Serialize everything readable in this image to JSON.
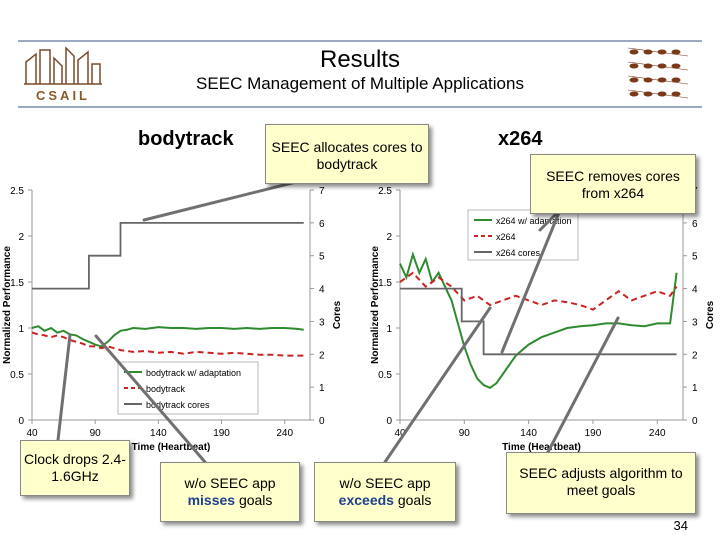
{
  "slide": {
    "title": "Results",
    "subtitle": "SEEC Management of Multiple Applications",
    "page_number": "34",
    "logo_left_text": "CSAIL"
  },
  "labels": {
    "bodytrack": "bodytrack",
    "x264": "x264"
  },
  "callouts": {
    "allocates": "SEEC allocates cores to bodytrack",
    "removes": "SEEC removes cores from x264",
    "clock": "Clock drops 2.4-1.6GHz",
    "misses_pre": "w/o SEEC app",
    "misses_bold": "misses",
    "misses_post": "goals",
    "exceeds_pre": "w/o SEEC app",
    "exceeds_bold": "exceeds",
    "exceeds_post": "goals",
    "adjusts": "SEEC adjusts algorithm to meet goals"
  },
  "colors": {
    "adaptation": "#2e8b2e",
    "baseline": "#cc2222",
    "cores": "#666666",
    "callout_bg": "#ffffcc",
    "accent_blue": "#1f3f8f"
  },
  "chart_data": [
    {
      "type": "line",
      "name": "bodytrack",
      "xlabel": "Time (Heartbeat)",
      "ylabel": "Normalized Performance",
      "y2label": "Cores",
      "xlim": [
        40,
        260
      ],
      "ylim": [
        0,
        2.5
      ],
      "y2lim": [
        0,
        7
      ],
      "xticks": [
        "40",
        "90",
        "140",
        "190",
        "240"
      ],
      "yticks": [
        "0",
        "0.5",
        "1",
        "1.5",
        "2",
        "2.5"
      ],
      "y2ticks": [
        "0",
        "1",
        "2",
        "3",
        "4",
        "5",
        "6",
        "7"
      ],
      "legend": [
        "bodytrack w/ adaptation",
        "bodytrack",
        "bodytrack cores"
      ],
      "legend_position": "bottom-right",
      "series": [
        {
          "name": "bodytrack w/ adaptation",
          "axis": "left",
          "points": [
            [
              40,
              1.0
            ],
            [
              45,
              1.02
            ],
            [
              50,
              0.97
            ],
            [
              55,
              1.0
            ],
            [
              60,
              0.95
            ],
            [
              65,
              0.97
            ],
            [
              70,
              0.93
            ],
            [
              75,
              0.92
            ],
            [
              80,
              0.88
            ],
            [
              85,
              0.85
            ],
            [
              90,
              0.82
            ],
            [
              95,
              0.8
            ],
            [
              100,
              0.85
            ],
            [
              105,
              0.92
            ],
            [
              110,
              0.97
            ],
            [
              115,
              0.98
            ],
            [
              120,
              1.0
            ],
            [
              130,
              0.99
            ],
            [
              140,
              1.01
            ],
            [
              150,
              1.0
            ],
            [
              160,
              1.0
            ],
            [
              170,
              0.99
            ],
            [
              180,
              1.0
            ],
            [
              190,
              1.0
            ],
            [
              200,
              0.99
            ],
            [
              210,
              1.0
            ],
            [
              220,
              0.99
            ],
            [
              230,
              1.0
            ],
            [
              240,
              1.0
            ],
            [
              250,
              0.99
            ],
            [
              255,
              0.98
            ]
          ]
        },
        {
          "name": "bodytrack",
          "axis": "left",
          "points": [
            [
              40,
              0.95
            ],
            [
              45,
              0.93
            ],
            [
              50,
              0.92
            ],
            [
              55,
              0.9
            ],
            [
              60,
              0.92
            ],
            [
              65,
              0.9
            ],
            [
              70,
              0.87
            ],
            [
              75,
              0.85
            ],
            [
              80,
              0.83
            ],
            [
              85,
              0.8
            ],
            [
              90,
              0.8
            ],
            [
              95,
              0.78
            ],
            [
              100,
              0.8
            ],
            [
              105,
              0.78
            ],
            [
              110,
              0.76
            ],
            [
              115,
              0.75
            ],
            [
              120,
              0.74
            ],
            [
              130,
              0.75
            ],
            [
              140,
              0.73
            ],
            [
              150,
              0.74
            ],
            [
              160,
              0.72
            ],
            [
              170,
              0.74
            ],
            [
              180,
              0.73
            ],
            [
              190,
              0.72
            ],
            [
              200,
              0.73
            ],
            [
              210,
              0.72
            ],
            [
              220,
              0.71
            ],
            [
              230,
              0.71
            ],
            [
              240,
              0.7
            ],
            [
              250,
              0.7
            ],
            [
              255,
              0.7
            ]
          ]
        },
        {
          "name": "bodytrack cores",
          "axis": "right",
          "points": [
            [
              40,
              4
            ],
            [
              85,
              4
            ],
            [
              85,
              5
            ],
            [
              110,
              5
            ],
            [
              110,
              6
            ],
            [
              255,
              6
            ]
          ]
        }
      ]
    },
    {
      "type": "line",
      "name": "x264",
      "xlabel": "Time (Heartbeat)",
      "ylabel": "Normalized Performance",
      "y2label": "Cores",
      "xlim": [
        40,
        260
      ],
      "ylim": [
        0,
        2.5
      ],
      "y2lim": [
        0,
        7
      ],
      "xticks": [
        "40",
        "90",
        "140",
        "190",
        "240"
      ],
      "yticks": [
        "0",
        "0.5",
        "1",
        "1.5",
        "2",
        "2.5"
      ],
      "y2ticks": [
        "0",
        "1",
        "2",
        "3",
        "4",
        "5",
        "6",
        "7"
      ],
      "legend": [
        "x264 w/ adaptation",
        "x264",
        "x264 cores"
      ],
      "legend_position": "top-right",
      "series": [
        {
          "name": "x264 w/ adaptation",
          "axis": "left",
          "points": [
            [
              40,
              1.7
            ],
            [
              45,
              1.55
            ],
            [
              50,
              1.8
            ],
            [
              55,
              1.6
            ],
            [
              60,
              1.75
            ],
            [
              65,
              1.5
            ],
            [
              70,
              1.6
            ],
            [
              75,
              1.45
            ],
            [
              80,
              1.3
            ],
            [
              85,
              1.05
            ],
            [
              90,
              0.8
            ],
            [
              95,
              0.6
            ],
            [
              100,
              0.45
            ],
            [
              105,
              0.38
            ],
            [
              110,
              0.35
            ],
            [
              115,
              0.4
            ],
            [
              120,
              0.5
            ],
            [
              130,
              0.7
            ],
            [
              140,
              0.82
            ],
            [
              150,
              0.9
            ],
            [
              160,
              0.95
            ],
            [
              170,
              1.0
            ],
            [
              180,
              1.02
            ],
            [
              190,
              1.03
            ],
            [
              200,
              1.05
            ],
            [
              210,
              1.05
            ],
            [
              220,
              1.03
            ],
            [
              230,
              1.02
            ],
            [
              240,
              1.05
            ],
            [
              250,
              1.05
            ],
            [
              255,
              1.6
            ]
          ]
        },
        {
          "name": "x264",
          "axis": "left",
          "points": [
            [
              40,
              1.5
            ],
            [
              50,
              1.6
            ],
            [
              60,
              1.45
            ],
            [
              70,
              1.55
            ],
            [
              80,
              1.45
            ],
            [
              90,
              1.3
            ],
            [
              100,
              1.35
            ],
            [
              110,
              1.25
            ],
            [
              120,
              1.3
            ],
            [
              130,
              1.35
            ],
            [
              140,
              1.3
            ],
            [
              150,
              1.25
            ],
            [
              160,
              1.3
            ],
            [
              170,
              1.28
            ],
            [
              180,
              1.25
            ],
            [
              190,
              1.2
            ],
            [
              200,
              1.3
            ],
            [
              210,
              1.4
            ],
            [
              220,
              1.3
            ],
            [
              230,
              1.35
            ],
            [
              240,
              1.4
            ],
            [
              250,
              1.35
            ],
            [
              255,
              1.45
            ]
          ]
        },
        {
          "name": "x264 cores",
          "axis": "right",
          "points": [
            [
              40,
              4
            ],
            [
              88,
              4
            ],
            [
              88,
              3
            ],
            [
              105,
              3
            ],
            [
              105,
              2
            ],
            [
              255,
              2
            ]
          ]
        }
      ]
    }
  ]
}
